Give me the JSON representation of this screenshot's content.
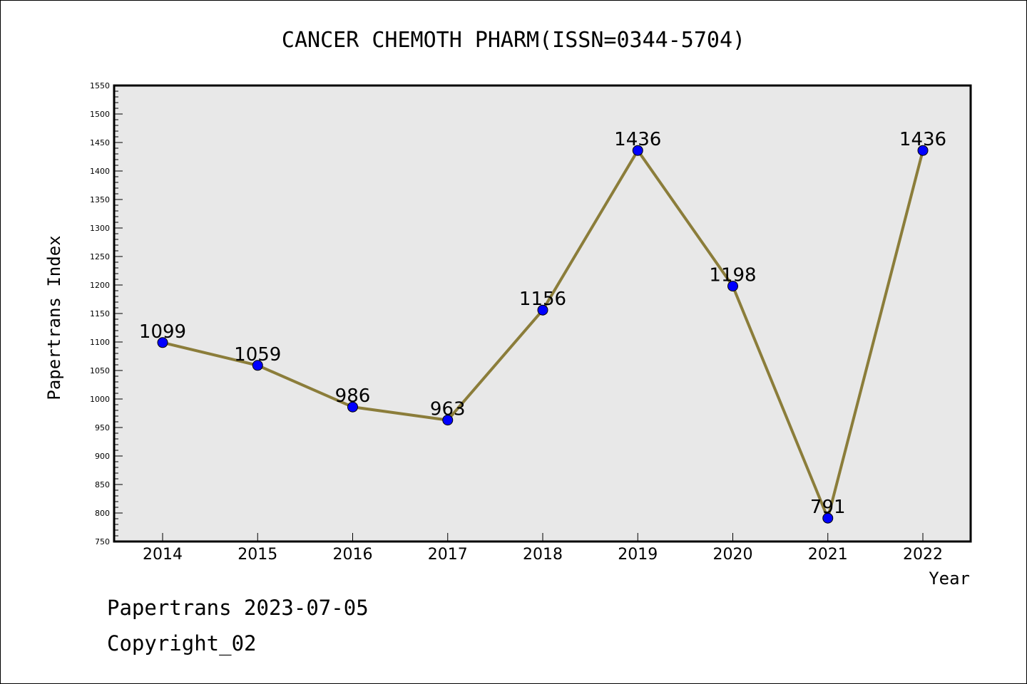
{
  "chart_data": {
    "type": "line",
    "title": "CANCER CHEMOTH PHARM(ISSN=0344-5704)",
    "xlabel": "Year",
    "ylabel": "Papertrans Index",
    "categories": [
      "2014",
      "2015",
      "2016",
      "2017",
      "2018",
      "2019",
      "2020",
      "2021",
      "2022"
    ],
    "series": [
      {
        "values": [
          1099,
          1059,
          986,
          963,
          1156,
          1436,
          1198,
          791,
          1436
        ]
      }
    ],
    "ylim": [
      750,
      1550
    ],
    "yticks": [
      750,
      800,
      850,
      900,
      950,
      1000,
      1050,
      1100,
      1150,
      1200,
      1250,
      1300,
      1350,
      1400,
      1450,
      1500,
      1550
    ],
    "grid": false,
    "line_color": "#8b7d3a",
    "marker_color": "#0000ff",
    "plot_background": "#e8e8e8"
  },
  "footer": {
    "line1": "Papertrans 2023-07-05",
    "line2": "Copyright_02"
  }
}
